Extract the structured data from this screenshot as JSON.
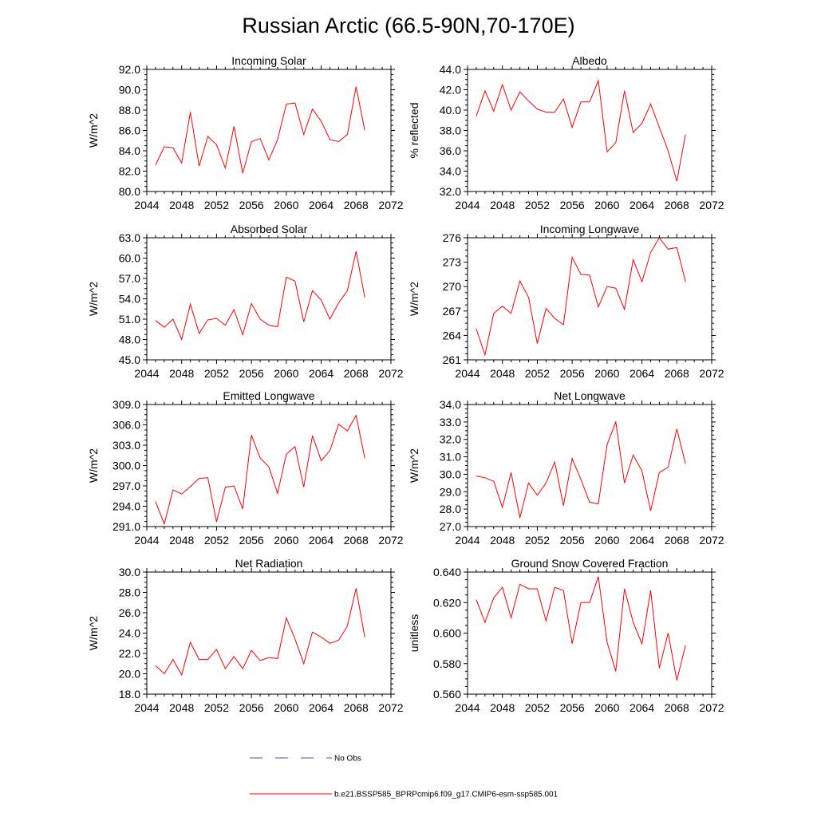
{
  "title": "Russian Arctic (66.5-90N,70-170E)",
  "years": [
    2045,
    2046,
    2047,
    2048,
    2049,
    2050,
    2051,
    2052,
    2053,
    2054,
    2055,
    2056,
    2057,
    2058,
    2059,
    2060,
    2061,
    2062,
    2063,
    2064,
    2065,
    2066,
    2067,
    2068,
    2069
  ],
  "colors": {
    "model_line": "#ff0000",
    "obs_line": "#4a4adf",
    "axis": "#000000"
  },
  "legend": {
    "obs_label": "No Obs",
    "model_label": "b.e21.BSSP585_BPRPcmip6.f09_g17.CMIP6-esm-ssp585.001"
  },
  "chart_data": [
    {
      "type": "line",
      "title": "Incoming Solar",
      "ylabel": "W/m^2",
      "xlim": [
        2044,
        2072
      ],
      "xticks": [
        "2044",
        "2048",
        "2052",
        "2056",
        "2060",
        "2064",
        "2068",
        "2072"
      ],
      "ylim": [
        80,
        92
      ],
      "yticks": [
        "80.0",
        "82.0",
        "84.0",
        "86.0",
        "88.0",
        "90.0",
        "92.0"
      ],
      "values": [
        82.6,
        84.4,
        84.3,
        82.8,
        87.8,
        82.5,
        85.4,
        84.6,
        82.3,
        86.4,
        81.8,
        84.9,
        85.2,
        83.1,
        85.1,
        88.6,
        88.7,
        85.6,
        88.1,
        86.9,
        85.1,
        84.9,
        85.6,
        90.3,
        86.0
      ]
    },
    {
      "type": "line",
      "title": "Albedo",
      "ylabel": "% reflected",
      "xlim": [
        2044,
        2072
      ],
      "xticks": [
        "2044",
        "2048",
        "2052",
        "2056",
        "2060",
        "2064",
        "2068",
        "2072"
      ],
      "ylim": [
        32,
        44
      ],
      "yticks": [
        "32.0",
        "34.0",
        "36.0",
        "38.0",
        "40.0",
        "42.0",
        "44.0"
      ],
      "values": [
        39.4,
        41.9,
        39.9,
        42.5,
        40.0,
        41.8,
        40.9,
        40.1,
        39.8,
        39.8,
        41.1,
        38.3,
        40.8,
        40.8,
        42.9,
        35.9,
        36.8,
        41.9,
        37.8,
        38.7,
        40.6,
        38.3,
        36.0,
        33.0,
        37.6
      ]
    },
    {
      "type": "line",
      "title": "Absorbed Solar",
      "ylabel": "W/m^2",
      "xlim": [
        2044,
        2072
      ],
      "xticks": [
        "2044",
        "2048",
        "2052",
        "2056",
        "2060",
        "2064",
        "2068",
        "2072"
      ],
      "ylim": [
        45,
        63
      ],
      "yticks": [
        "45.0",
        "48.0",
        "51.0",
        "54.0",
        "57.0",
        "60.0",
        "63.0"
      ],
      "values": [
        50.8,
        49.8,
        51.0,
        48.0,
        53.2,
        48.9,
        50.9,
        51.1,
        50.1,
        52.4,
        48.7,
        53.3,
        51.0,
        50.1,
        49.9,
        57.2,
        56.6,
        50.6,
        55.2,
        53.8,
        51.0,
        53.4,
        55.2,
        61.0,
        54.2
      ]
    },
    {
      "type": "line",
      "title": "Incoming Longwave",
      "ylabel": "W/m^2",
      "xlim": [
        2044,
        2072
      ],
      "xticks": [
        "2044",
        "2048",
        "2052",
        "2056",
        "2060",
        "2064",
        "2068",
        "2072"
      ],
      "ylim": [
        261,
        276
      ],
      "yticks": [
        "261",
        "264",
        "267",
        "270",
        "273",
        "276"
      ],
      "values": [
        264.8,
        261.6,
        266.7,
        267.6,
        266.7,
        270.7,
        268.7,
        263.0,
        267.3,
        266.1,
        265.3,
        273.6,
        271.5,
        271.4,
        267.5,
        270.0,
        269.8,
        267.2,
        273.3,
        270.6,
        274.2,
        276.0,
        274.6,
        274.8,
        270.6
      ]
    },
    {
      "type": "line",
      "title": "Emitted Longwave",
      "ylabel": "W/m^2",
      "xlim": [
        2044,
        2072
      ],
      "xticks": [
        "2044",
        "2048",
        "2052",
        "2056",
        "2060",
        "2064",
        "2068",
        "2072"
      ],
      "ylim": [
        291,
        309
      ],
      "yticks": [
        "291.0",
        "294.0",
        "297.0",
        "300.0",
        "303.0",
        "306.0",
        "309.0"
      ],
      "values": [
        294.7,
        291.4,
        296.4,
        295.8,
        296.9,
        298.1,
        298.2,
        291.7,
        296.8,
        297.0,
        293.6,
        304.5,
        301.1,
        299.8,
        295.9,
        301.7,
        302.8,
        296.8,
        304.4,
        300.7,
        302.2,
        306.1,
        305.1,
        307.4,
        301.1
      ]
    },
    {
      "type": "line",
      "title": "Net Longwave",
      "ylabel": "W/m^2",
      "xlim": [
        2044,
        2072
      ],
      "xticks": [
        "2044",
        "2048",
        "2052",
        "2056",
        "2060",
        "2064",
        "2068",
        "2072"
      ],
      "ylim": [
        27,
        34
      ],
      "yticks": [
        "27.0",
        "28.0",
        "29.0",
        "30.0",
        "31.0",
        "32.0",
        "33.0",
        "34.0"
      ],
      "values": [
        29.9,
        29.8,
        29.6,
        28.1,
        30.1,
        27.5,
        29.5,
        28.8,
        29.5,
        30.7,
        28.2,
        30.9,
        29.7,
        28.4,
        28.3,
        31.7,
        33.0,
        29.5,
        31.1,
        30.2,
        27.9,
        30.1,
        30.4,
        32.6,
        30.6
      ]
    },
    {
      "type": "line",
      "title": "Net Radiation",
      "ylabel": "W/m^2",
      "xlim": [
        2044,
        2072
      ],
      "xticks": [
        "2044",
        "2048",
        "2052",
        "2056",
        "2060",
        "2064",
        "2068",
        "2072"
      ],
      "ylim": [
        18,
        30
      ],
      "yticks": [
        "18.0",
        "20.0",
        "22.0",
        "24.0",
        "26.0",
        "28.0",
        "30.0"
      ],
      "values": [
        20.8,
        20.0,
        21.4,
        19.9,
        23.1,
        21.4,
        21.4,
        22.4,
        20.5,
        21.7,
        20.5,
        22.3,
        21.3,
        21.6,
        21.5,
        25.5,
        23.4,
        21.0,
        24.1,
        23.6,
        23.0,
        23.3,
        24.7,
        28.4,
        23.6
      ]
    },
    {
      "type": "line",
      "title": "Ground Snow Covered Fraction",
      "ylabel": "unitless",
      "xlim": [
        2044,
        2072
      ],
      "xticks": [
        "2044",
        "2048",
        "2052",
        "2056",
        "2060",
        "2064",
        "2068",
        "2072"
      ],
      "ylim": [
        0.56,
        0.64
      ],
      "yticks": [
        "0.560",
        "0.580",
        "0.600",
        "0.620",
        "0.640"
      ],
      "values": [
        0.622,
        0.607,
        0.623,
        0.63,
        0.61,
        0.632,
        0.629,
        0.629,
        0.608,
        0.63,
        0.628,
        0.593,
        0.62,
        0.62,
        0.637,
        0.594,
        0.575,
        0.629,
        0.607,
        0.593,
        0.628,
        0.577,
        0.6,
        0.569,
        0.592
      ]
    }
  ]
}
